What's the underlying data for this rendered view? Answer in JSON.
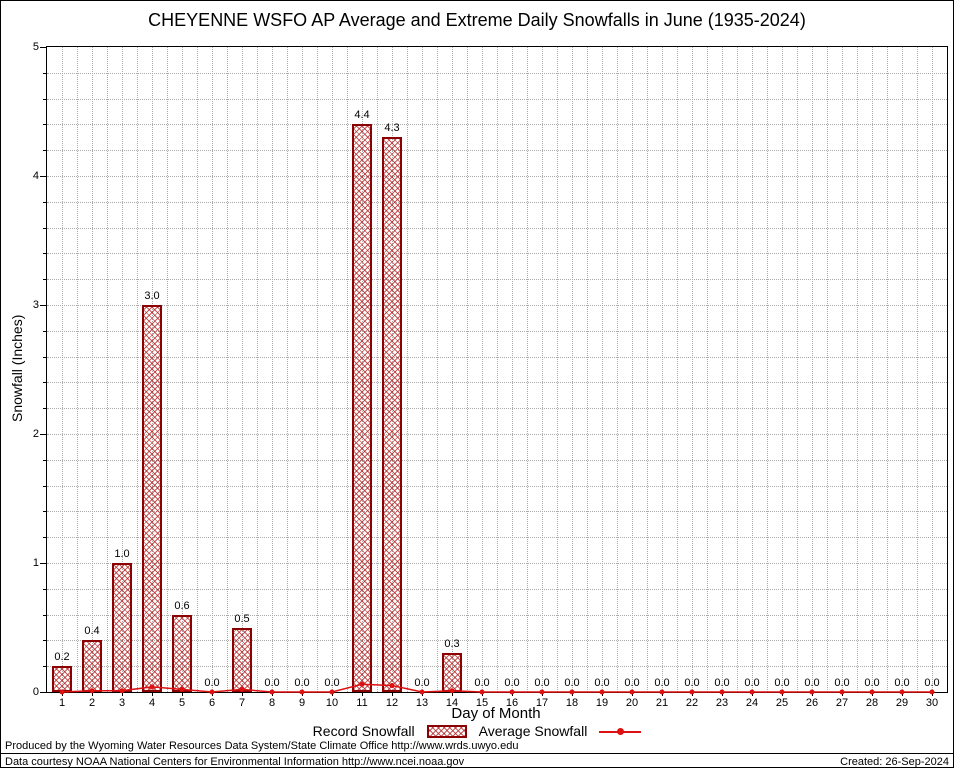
{
  "chart_data": {
    "type": "bar",
    "title": "CHEYENNE WSFO AP Average and Extreme Daily Snowfalls in June (1935-2024)",
    "xlabel": "Day of Month",
    "ylabel": "Snowfall (Inches)",
    "ylim": [
      0,
      5
    ],
    "y_major_ticks": [
      0,
      1,
      2,
      3,
      4,
      5
    ],
    "y_minor_step": 0.2,
    "grid": true,
    "legend_position": "bottom",
    "categories": [
      1,
      2,
      3,
      4,
      5,
      6,
      7,
      8,
      9,
      10,
      11,
      12,
      13,
      14,
      15,
      16,
      17,
      18,
      19,
      20,
      21,
      22,
      23,
      24,
      25,
      26,
      27,
      28,
      29,
      30
    ],
    "series": [
      {
        "name": "Record Snowfall",
        "type": "bar",
        "values": [
          0.2,
          0.4,
          1.0,
          3.0,
          0.6,
          0.0,
          0.5,
          0.0,
          0.0,
          0.0,
          4.4,
          4.3,
          0.0,
          0.3,
          0.0,
          0.0,
          0.0,
          0.0,
          0.0,
          0.0,
          0.0,
          0.0,
          0.0,
          0.0,
          0.0,
          0.0,
          0.0,
          0.0,
          0.0,
          0.0
        ]
      },
      {
        "name": "Average Snowfall",
        "type": "line",
        "values": [
          0.0,
          0.01,
          0.01,
          0.04,
          0.02,
          0.0,
          0.02,
          0.0,
          0.0,
          0.0,
          0.06,
          0.05,
          0.0,
          0.01,
          0.0,
          0.0,
          0.0,
          0.0,
          0.0,
          0.0,
          0.0,
          0.0,
          0.0,
          0.0,
          0.0,
          0.0,
          0.0,
          0.0,
          0.0,
          0.0
        ]
      }
    ],
    "colors": {
      "bar_border": "#8b0000",
      "bar_hatch": "#b22222",
      "avg_line": "#dd1111"
    }
  },
  "footer": {
    "line1": "Produced by the Wyoming Water Resources Data System/State Climate Office http://www.wrds.uwyo.edu",
    "line2": "Data courtesy NOAA National Centers for Environmental Information http://www.ncei.noaa.gov",
    "created": "Created: 26-Sep-2024"
  }
}
